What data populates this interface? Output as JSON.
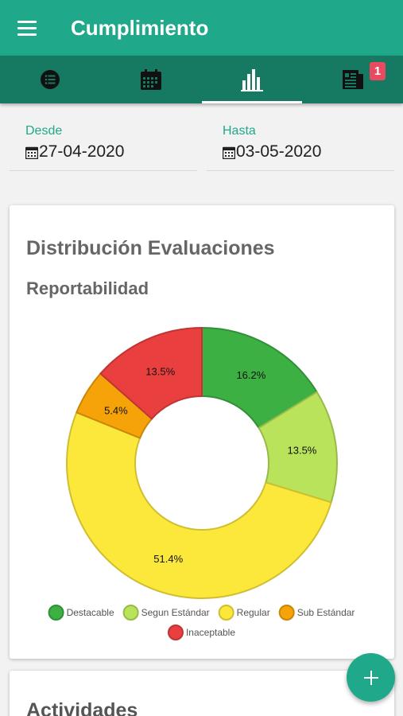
{
  "header": {
    "title": "Cumplimiento"
  },
  "tabs": [
    {
      "icon": "list-icon"
    },
    {
      "icon": "calendar-icon"
    },
    {
      "icon": "bar-chart-icon",
      "active": true
    },
    {
      "icon": "news-icon",
      "badge": "1"
    }
  ],
  "filters": {
    "from": {
      "label": "Desde",
      "value": "27-04-2020"
    },
    "to": {
      "label": "Hasta",
      "value": "03-05-2020"
    }
  },
  "card": {
    "title": "Distribución Evaluaciones",
    "subtitle": "Reportabilidad"
  },
  "chart_data": {
    "type": "pie",
    "donut": true,
    "categories": [
      "Destacable",
      "Segun Estándar",
      "Regular",
      "Sub Estándar",
      "Inaceptable"
    ],
    "values": [
      16.2,
      13.5,
      51.4,
      5.4,
      13.5
    ],
    "labels": [
      "16.2%",
      "13.5%",
      "51.4%",
      "5.4%",
      "13.5%"
    ],
    "colors": [
      "#3cb043",
      "#b8e35a",
      "#fce83a",
      "#f6a30a",
      "#ea3f3f"
    ],
    "legend_placement": "bottom"
  },
  "second_card": {
    "title": "Actividades"
  },
  "colors": {
    "primary": "#1fa98a",
    "primary_dark": "#167a62",
    "badge": "#e84a5f"
  }
}
